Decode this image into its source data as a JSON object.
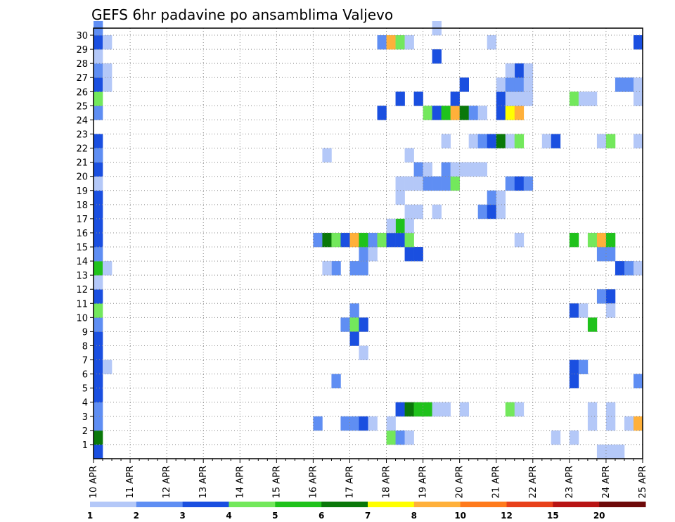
{
  "chart_data": {
    "type": "heatmap",
    "title": "GEFS 6hr padavine po ansamblima Valjevo",
    "xlabel": "",
    "ylabel": "",
    "x_tick_labels": [
      "10 APR",
      "11 APR",
      "12 APR",
      "13 APR",
      "14 APR",
      "15 APR",
      "16 APR",
      "17 APR",
      "18 APR",
      "19 APR",
      "20 APR",
      "21 APR",
      "22 APR",
      "23 APR",
      "24 APR",
      "25 APR"
    ],
    "y_tick_labels": [
      "1",
      "2",
      "3",
      "4",
      "5",
      "6",
      "7",
      "8",
      "9",
      "10",
      "11",
      "12",
      "13",
      "14",
      "15",
      "16",
      "17",
      "18",
      "19",
      "20",
      "21",
      "22",
      "23",
      "24",
      "25",
      "26",
      "27",
      "28",
      "29",
      "30"
    ],
    "x_steps_per_day": 4,
    "x_steps_total": 60,
    "y_members_range": [
      0,
      30
    ],
    "grid": true,
    "legend": {
      "placement": "bottom",
      "labels": [
        "1",
        "2",
        "3",
        "4",
        "5",
        "6",
        "7",
        "8",
        "10",
        "12",
        "15",
        "20"
      ],
      "colors": [
        "#b4c8f8",
        "#5f8ef3",
        "#1a4fe0",
        "#73e85c",
        "#1fc21b",
        "#0a780a",
        "#ffff00",
        "#ffb03a",
        "#ff7a1c",
        "#e8401a",
        "#b81414",
        "#6e0a0a"
      ]
    },
    "cells": [
      [
        0,
        0,
        2
      ],
      [
        0,
        1,
        5
      ],
      [
        0,
        2,
        1
      ],
      [
        0,
        3,
        1
      ],
      [
        0,
        4,
        2
      ],
      [
        0,
        5,
        2
      ],
      [
        0,
        6,
        2
      ],
      [
        0,
        7,
        2
      ],
      [
        0,
        8,
        2
      ],
      [
        0,
        9,
        1
      ],
      [
        0,
        10,
        3
      ],
      [
        0,
        11,
        2
      ],
      [
        0,
        12,
        0
      ],
      [
        0,
        13,
        4
      ],
      [
        0,
        14,
        1
      ],
      [
        0,
        15,
        2
      ],
      [
        0,
        16,
        2
      ],
      [
        0,
        17,
        2
      ],
      [
        0,
        18,
        2
      ],
      [
        0,
        19,
        0
      ],
      [
        0,
        20,
        2
      ],
      [
        0,
        21,
        1
      ],
      [
        0,
        22,
        2
      ],
      [
        0,
        24,
        1
      ],
      [
        0,
        25,
        3
      ],
      [
        0,
        26,
        2
      ],
      [
        0,
        27,
        1
      ],
      [
        0,
        28,
        0
      ],
      [
        0,
        29,
        2
      ],
      [
        0,
        30,
        1
      ],
      [
        1,
        6,
        0
      ],
      [
        1,
        13,
        0
      ],
      [
        1,
        26,
        0
      ],
      [
        1,
        27,
        0
      ],
      [
        1,
        29,
        0
      ],
      [
        52,
        25,
        3
      ],
      [
        53,
        25,
        0
      ],
      [
        54,
        25,
        0
      ],
      [
        55,
        0,
        0
      ],
      [
        56,
        0,
        0
      ],
      [
        57,
        0,
        0
      ],
      [
        50,
        1,
        0
      ],
      [
        52,
        1,
        0
      ],
      [
        54,
        2,
        0
      ],
      [
        56,
        2,
        0
      ],
      [
        54,
        3,
        0
      ],
      [
        56,
        3,
        0
      ],
      [
        26,
        5,
        1
      ],
      [
        27,
        2,
        1
      ],
      [
        28,
        2,
        1
      ],
      [
        29,
        2,
        2
      ],
      [
        30,
        2,
        0
      ],
      [
        33,
        3,
        2
      ],
      [
        34,
        3,
        5
      ],
      [
        35,
        3,
        4
      ],
      [
        36,
        3,
        4
      ],
      [
        37,
        3,
        0
      ],
      [
        38,
        3,
        0
      ],
      [
        40,
        3,
        0
      ],
      [
        45,
        3,
        3
      ],
      [
        46,
        3,
        0
      ],
      [
        32,
        1,
        3
      ],
      [
        33,
        1,
        1
      ],
      [
        34,
        1,
        0
      ],
      [
        32,
        2,
        0
      ],
      [
        58,
        2,
        0
      ],
      [
        59,
        2,
        7
      ],
      [
        24,
        2,
        1
      ],
      [
        27,
        9,
        1
      ],
      [
        28,
        10,
        1
      ],
      [
        28,
        9,
        3
      ],
      [
        29,
        9,
        2
      ],
      [
        28,
        8,
        2
      ],
      [
        29,
        7,
        0
      ],
      [
        28,
        13,
        1
      ],
      [
        29,
        13,
        1
      ],
      [
        26,
        13,
        1
      ],
      [
        25,
        13,
        0
      ],
      [
        29,
        14,
        1
      ],
      [
        30,
        14,
        0
      ],
      [
        34,
        14,
        2
      ],
      [
        35,
        14,
        2
      ],
      [
        52,
        6,
        2
      ],
      [
        53,
        6,
        1
      ],
      [
        52,
        5,
        2
      ],
      [
        59,
        5,
        1
      ],
      [
        52,
        10,
        2
      ],
      [
        53,
        10,
        0
      ],
      [
        54,
        9,
        4
      ],
      [
        55,
        11,
        1
      ],
      [
        56,
        11,
        2
      ],
      [
        56,
        10,
        0
      ],
      [
        57,
        13,
        2
      ],
      [
        58,
        13,
        1
      ],
      [
        59,
        13,
        0
      ],
      [
        55,
        14,
        1
      ],
      [
        56,
        14,
        1
      ],
      [
        24,
        15,
        1
      ],
      [
        25,
        15,
        5
      ],
      [
        26,
        15,
        3
      ],
      [
        27,
        15,
        2
      ],
      [
        28,
        15,
        7
      ],
      [
        29,
        15,
        4
      ],
      [
        30,
        15,
        1
      ],
      [
        31,
        15,
        3
      ],
      [
        32,
        15,
        2
      ],
      [
        33,
        15,
        2
      ],
      [
        34,
        15,
        3
      ],
      [
        33,
        16,
        4
      ],
      [
        32,
        16,
        0
      ],
      [
        34,
        16,
        0
      ],
      [
        52,
        15,
        4
      ],
      [
        54,
        15,
        3
      ],
      [
        55,
        15,
        7
      ],
      [
        56,
        15,
        4
      ],
      [
        46,
        15,
        0
      ],
      [
        34,
        17,
        0
      ],
      [
        35,
        17,
        0
      ],
      [
        37,
        17,
        0
      ],
      [
        33,
        18,
        0
      ],
      [
        33,
        19,
        0
      ],
      [
        34,
        19,
        0
      ],
      [
        35,
        19,
        0
      ],
      [
        36,
        19,
        1
      ],
      [
        37,
        19,
        1
      ],
      [
        38,
        19,
        1
      ],
      [
        39,
        19,
        3
      ],
      [
        42,
        17,
        1
      ],
      [
        43,
        17,
        2
      ],
      [
        44,
        17,
        0
      ],
      [
        43,
        18,
        1
      ],
      [
        44,
        18,
        0
      ],
      [
        45,
        19,
        1
      ],
      [
        46,
        19,
        2
      ],
      [
        47,
        19,
        1
      ],
      [
        35,
        20,
        1
      ],
      [
        36,
        20,
        0
      ],
      [
        38,
        20,
        1
      ],
      [
        39,
        20,
        0
      ],
      [
        40,
        20,
        0
      ],
      [
        41,
        20,
        0
      ],
      [
        42,
        20,
        0
      ],
      [
        34,
        21,
        0
      ],
      [
        25,
        21,
        0
      ],
      [
        0,
        21,
        1
      ],
      [
        38,
        22,
        0
      ],
      [
        41,
        22,
        0
      ],
      [
        42,
        22,
        1
      ],
      [
        43,
        22,
        2
      ],
      [
        44,
        22,
        5
      ],
      [
        45,
        22,
        0
      ],
      [
        46,
        22,
        3
      ],
      [
        49,
        22,
        0
      ],
      [
        50,
        22,
        2
      ],
      [
        55,
        22,
        0
      ],
      [
        56,
        22,
        3
      ],
      [
        59,
        22,
        0
      ],
      [
        36,
        24,
        3
      ],
      [
        37,
        24,
        2
      ],
      [
        38,
        24,
        4
      ],
      [
        39,
        24,
        7
      ],
      [
        40,
        24,
        5
      ],
      [
        41,
        24,
        1
      ],
      [
        42,
        24,
        0
      ],
      [
        44,
        24,
        2
      ],
      [
        45,
        24,
        6
      ],
      [
        46,
        24,
        7
      ],
      [
        31,
        24,
        2
      ],
      [
        33,
        25,
        2
      ],
      [
        35,
        25,
        2
      ],
      [
        39,
        25,
        2
      ],
      [
        44,
        25,
        2
      ],
      [
        45,
        25,
        0
      ],
      [
        46,
        25,
        0
      ],
      [
        47,
        25,
        0
      ],
      [
        40,
        26,
        2
      ],
      [
        44,
        26,
        0
      ],
      [
        45,
        26,
        1
      ],
      [
        46,
        26,
        1
      ],
      [
        47,
        26,
        0
      ],
      [
        46,
        27,
        2
      ],
      [
        45,
        27,
        0
      ],
      [
        47,
        27,
        0
      ],
      [
        57,
        26,
        1
      ],
      [
        58,
        26,
        1
      ],
      [
        59,
        26,
        0
      ],
      [
        59,
        25,
        0
      ],
      [
        37,
        28,
        2
      ],
      [
        31,
        29,
        1
      ],
      [
        32,
        29,
        7
      ],
      [
        33,
        29,
        3
      ],
      [
        34,
        29,
        0
      ],
      [
        43,
        29,
        0
      ],
      [
        59,
        29,
        2
      ],
      [
        37,
        30,
        0
      ]
    ]
  }
}
